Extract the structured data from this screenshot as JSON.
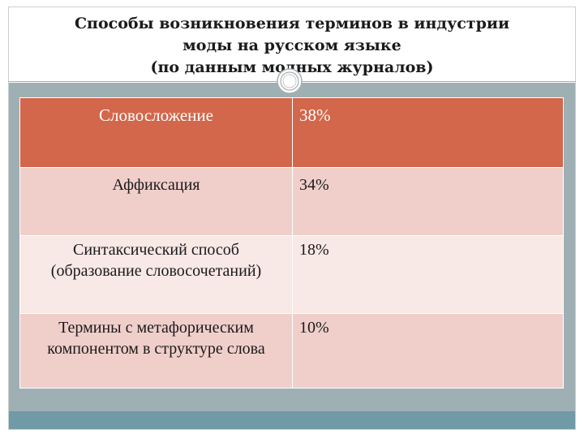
{
  "slide": {
    "title_lines": [
      "Способы возникновения терминов в индустрии",
      "моды на русском языке",
      "(по данным модных журналов)"
    ]
  },
  "table": {
    "header": {
      "name": "Словосложение",
      "value": "38%"
    },
    "rows": [
      {
        "name": "Аффиксация",
        "value": "34%"
      },
      {
        "name": "Синтаксический способ (образование словосочетаний)",
        "value": "18%"
      },
      {
        "name": "Термины с метафорическим компонентом в структуре слова",
        "value": "10%"
      }
    ]
  },
  "colors": {
    "header_row": "#d2674b",
    "row_dark": "#f0cfcb",
    "row_light": "#f8e8e6",
    "content_background": "#9fb0b5",
    "footer_bar": "#6f9aa6"
  },
  "icons": {
    "title_ornament": "circle-ornament-icon"
  }
}
